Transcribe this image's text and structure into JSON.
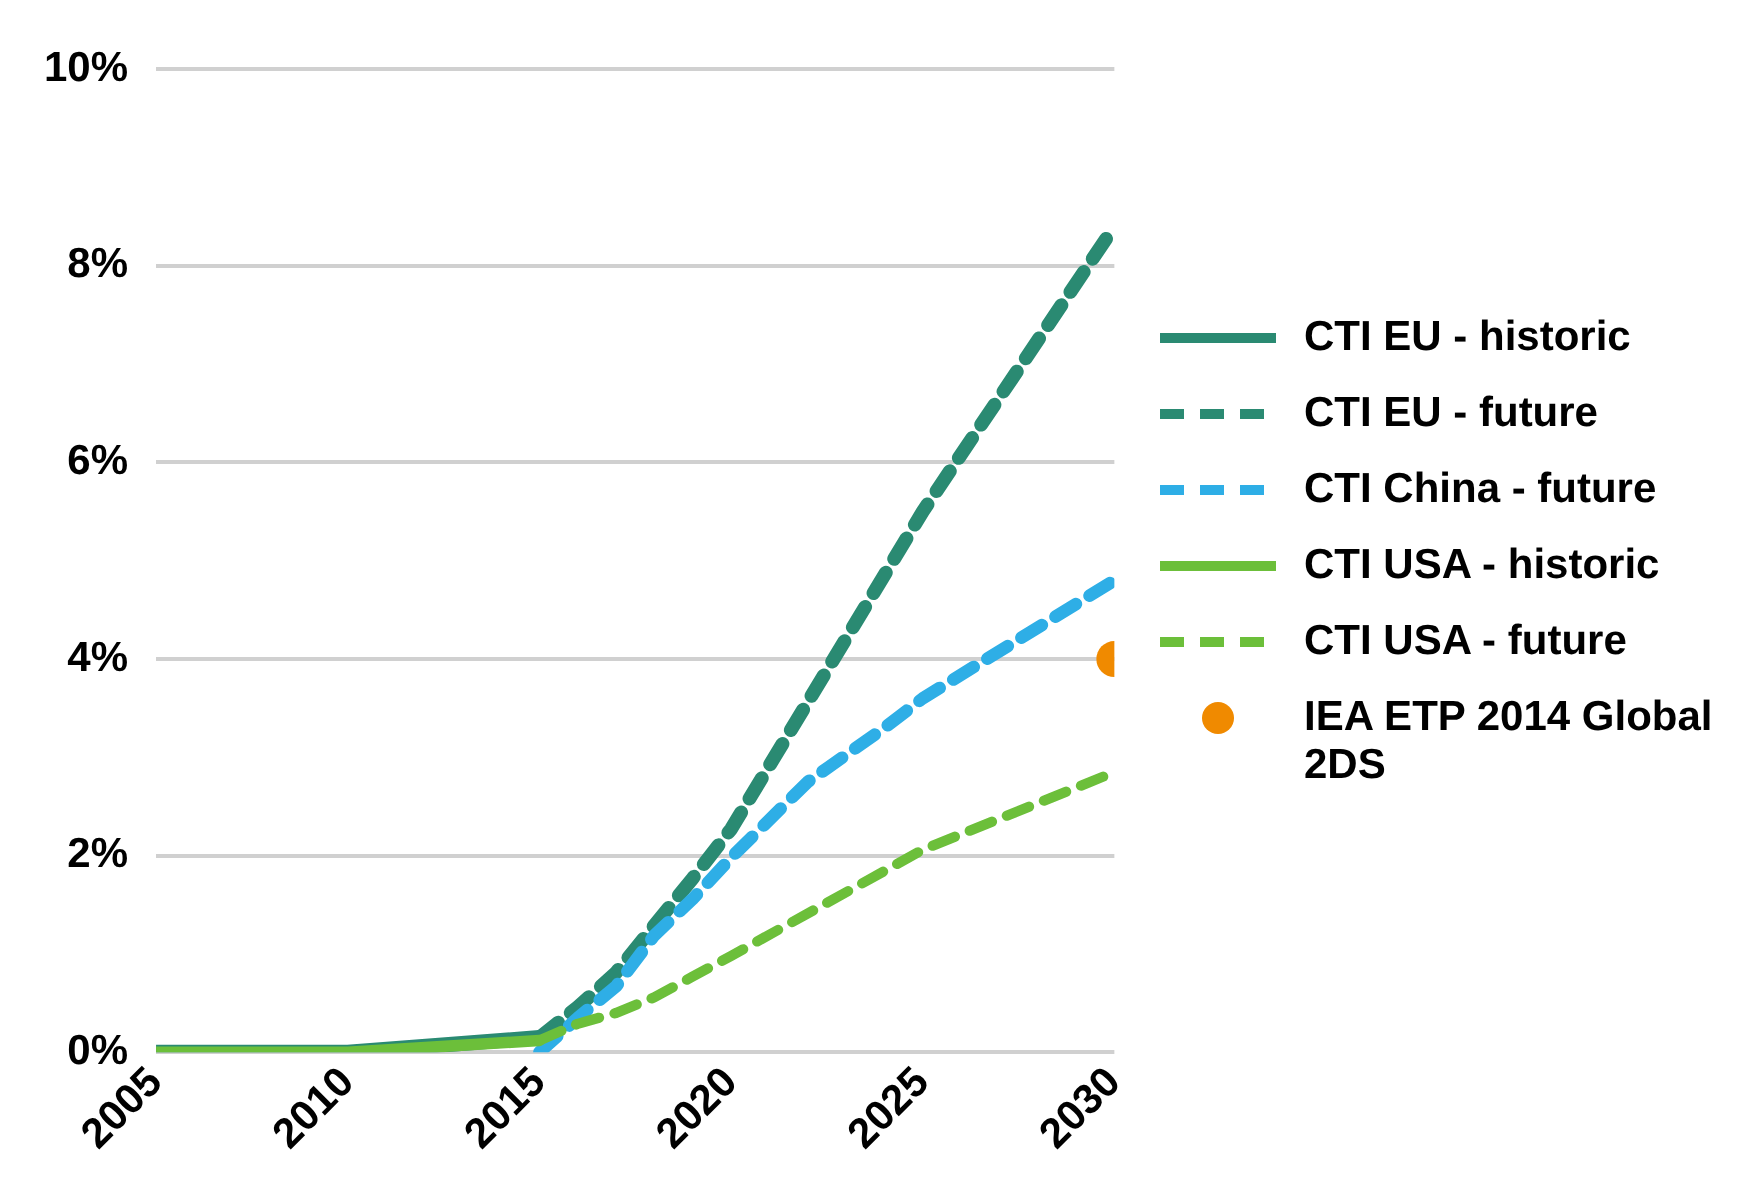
{
  "chart_data": {
    "type": "line",
    "xlim": [
      2005,
      2030
    ],
    "xticks": [
      2005,
      2010,
      2015,
      2020,
      2025,
      2030
    ],
    "ylim": [
      0,
      10
    ],
    "yticks": [
      {
        "value": 0,
        "label": "0%"
      },
      {
        "value": 2,
        "label": "2%"
      },
      {
        "value": 4,
        "label": "4%"
      },
      {
        "value": 6,
        "label": "6%"
      },
      {
        "value": 8,
        "label": "8%"
      },
      {
        "value": 10,
        "label": "10%"
      }
    ],
    "grid": "y",
    "legend": "right",
    "marker": "none",
    "series": [
      {
        "name": "CTI EU - historic",
        "color": "#2a8a72",
        "line_style": "solid",
        "x": [
          2005,
          2010,
          2015
        ],
        "values": [
          0,
          0,
          0.15
        ]
      },
      {
        "name": "CTI EU - future",
        "color": "#2a8a72",
        "line_style": "dashed",
        "x": [
          2015,
          2016,
          2017,
          2018,
          2019,
          2020,
          2025,
          2030
        ],
        "values": [
          0.15,
          0.46,
          0.81,
          1.29,
          1.77,
          2.27,
          5.5,
          8.4
        ]
      },
      {
        "name": "CTI China - future",
        "color": "#2eaee6",
        "line_style": "dashed",
        "x": [
          2015,
          2016,
          2017,
          2018,
          2019,
          2020,
          2022,
          2024,
          2025,
          2030
        ],
        "values": [
          0,
          0.35,
          0.67,
          1.19,
          1.56,
          1.98,
          2.75,
          3.3,
          3.6,
          4.8
        ]
      },
      {
        "name": "CTI USA - historic",
        "color": "#6cbf3a",
        "line_style": "solid",
        "x": [
          2005,
          2010,
          2015
        ],
        "values": [
          0,
          0,
          0.12
        ]
      },
      {
        "name": "CTI USA - future",
        "color": "#6cbf3a",
        "line_style": "dashed",
        "x": [
          2015,
          2016,
          2017,
          2018,
          2019,
          2020,
          2025,
          2030
        ],
        "values": [
          0.12,
          0.29,
          0.4,
          0.56,
          0.77,
          0.98,
          2.06,
          2.85
        ]
      },
      {
        "name": "IEA ETP 2014 Global 2DS",
        "color": "#f08a00",
        "type": "scatter",
        "marker": "circle",
        "x": [
          2030
        ],
        "values": [
          4
        ]
      }
    ]
  }
}
